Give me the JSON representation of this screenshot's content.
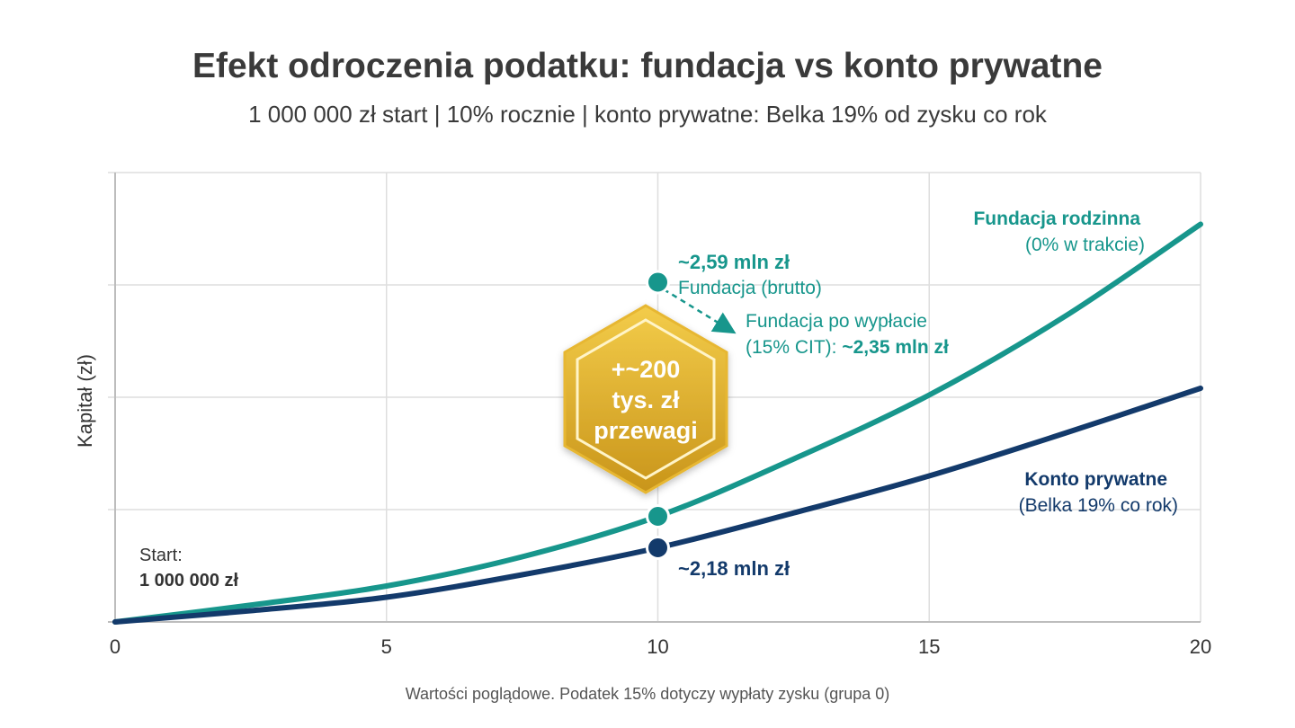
{
  "chart_data": {
    "type": "line",
    "title": "Efekt odroczenia podatku: fundacja vs konto prywatne",
    "subtitle": "1 000 000 zł start | 10% rocznie | konto prywatne: Belka 19% od zysku co rok",
    "xlabel": "",
    "ylabel": "Kapitał (zł)",
    "xlim": [
      0,
      20
    ],
    "x_ticks": [
      "0",
      "5",
      "10",
      "15",
      "20"
    ],
    "ylim": [
      1,
      5
    ],
    "grid": true,
    "x": [
      0,
      2.5,
      5,
      7.5,
      10,
      12.5,
      15,
      17.5,
      20
    ],
    "series": [
      {
        "name": "Fundacja rodzinna",
        "note": "(0% w trakcie)",
        "color": "#17968c",
        "values": [
          1.0,
          1.15,
          1.32,
          1.58,
          1.94,
          2.45,
          3.02,
          3.72,
          4.54
        ]
      },
      {
        "name": "Konto prywatne",
        "note": "(Belka 19% co rok)",
        "color": "#133a6b",
        "values": [
          1.0,
          1.1,
          1.22,
          1.42,
          1.66,
          1.97,
          2.3,
          2.68,
          3.08
        ]
      }
    ],
    "annotations": {
      "start_label": "Start:",
      "start_value": "1 000 000 zł",
      "brutto_value": "~2,59 mln zł",
      "brutto_label": "Fundacja (brutto)",
      "after_label_1": "Fundacja po wypłacie",
      "after_label_2": "(15% CIT): ",
      "after_value": "~2,35 mln zł",
      "konto_value": "~2,18 mln zł",
      "badge_line1": "+~200",
      "badge_line2": "tys. zł",
      "badge_line3": "przewagi"
    },
    "footnote": "Wartości poglądowe. Podatek 15% dotyczy wypłaty zysku (grupa 0)"
  }
}
